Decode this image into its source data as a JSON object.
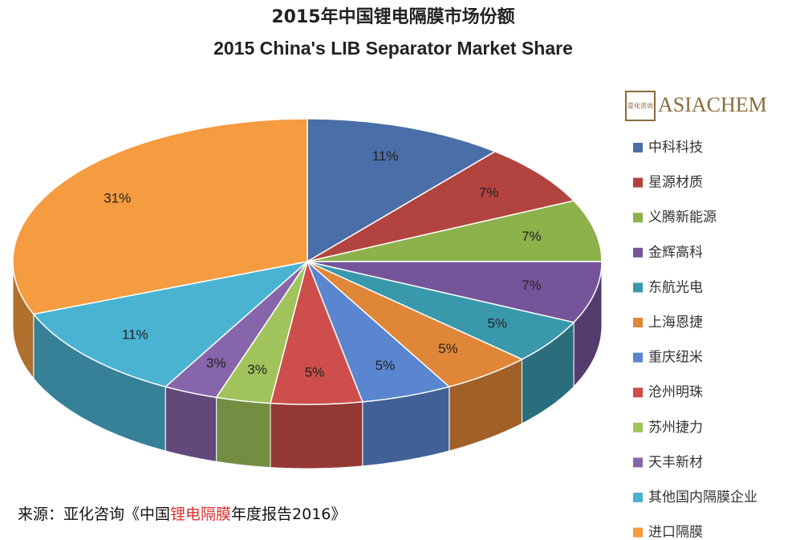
{
  "chart_data": {
    "type": "pie3d",
    "title": "2015年中国锂电隔膜市场份额",
    "subtitle": "2015 China's LIB Separator Market Share",
    "logo": "ASIACHEM",
    "logo_mark": "亚化咨询",
    "categories": [
      "中科科技",
      "星源材质",
      "义腾新能源",
      "金辉高科",
      "东航光电",
      "上海恩捷",
      "重庆纽米",
      "沧州明珠",
      "苏州捷力",
      "天丰新材",
      "其他国内隔膜企业",
      "进口隔膜"
    ],
    "values": [
      11,
      7,
      7,
      7,
      5,
      5,
      5,
      5,
      3,
      3,
      11,
      31
    ],
    "value_labels": [
      "11%",
      "7%",
      "7%",
      "7%",
      "5%",
      "5%",
      "5%",
      "5%",
      "3%",
      "3%",
      "11%",
      "31%"
    ],
    "colors": [
      "#4a6ea8",
      "#b3433f",
      "#8db14b",
      "#76549a",
      "#3a98ad",
      "#e08638",
      "#5a86cf",
      "#cd4e4a",
      "#a0c45b",
      "#8765aa",
      "#4bb3d2",
      "#f59b40"
    ],
    "source": [
      "来源：亚化咨询《中国",
      "锂电隔膜",
      "年度报告2016》"
    ]
  }
}
